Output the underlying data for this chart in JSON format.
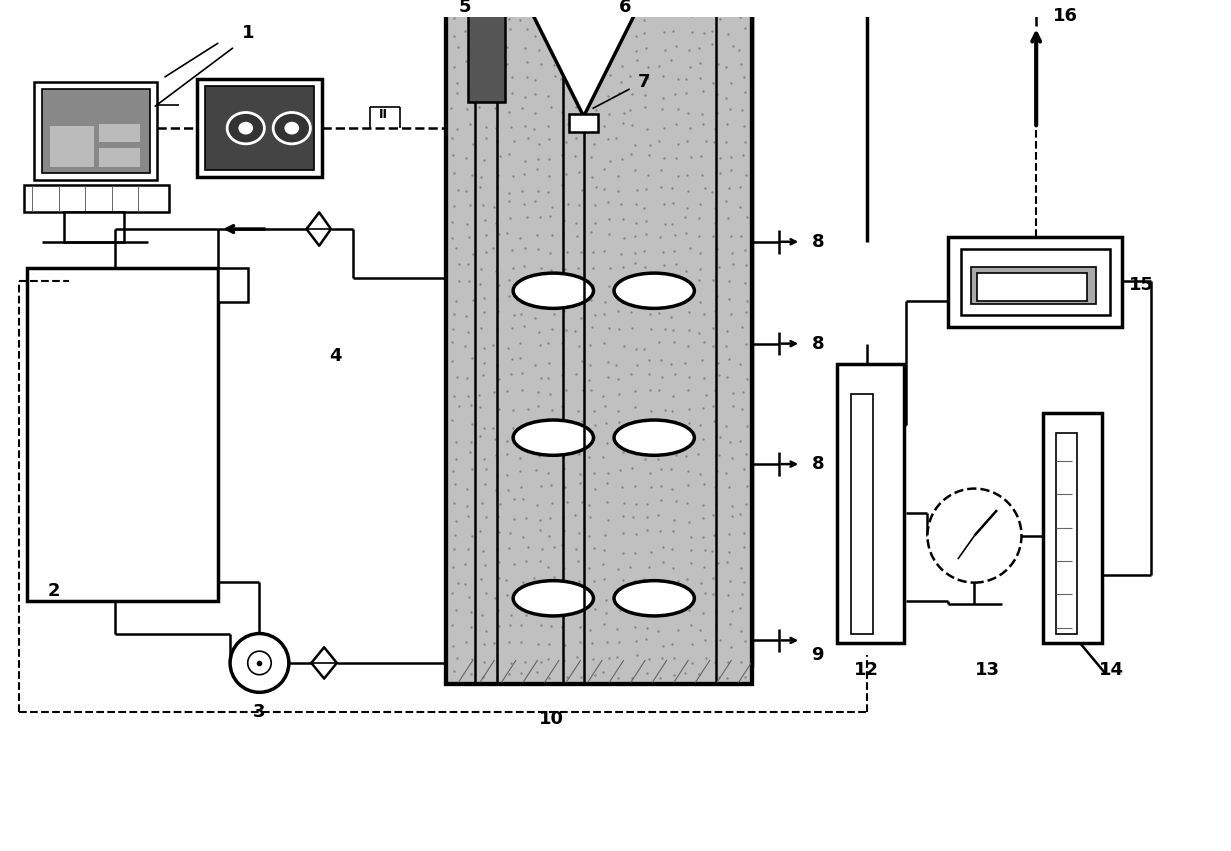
{
  "bg": "#ffffff",
  "lc": "#000000",
  "gray_fill": "#c0c0c0",
  "dark_gray": "#555555",
  "figsize": [
    12.31,
    8.51
  ],
  "dpi": 100,
  "lw": 1.8,
  "lw_thick": 2.5,
  "lw_thin": 1.2
}
